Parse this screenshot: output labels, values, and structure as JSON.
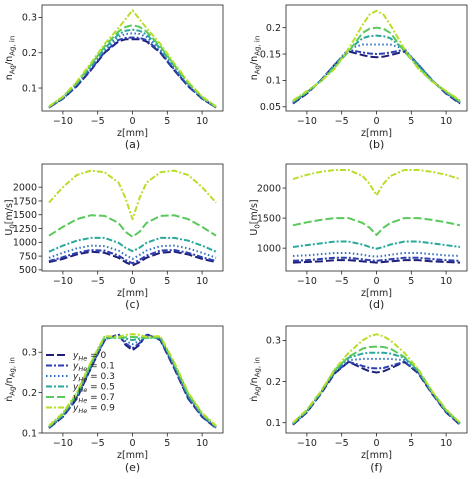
{
  "series_styles": [
    {
      "name": "y_He = 0",
      "color": "#1f1f7a",
      "dash": "8,3"
    },
    {
      "name": "y_He = 0.1",
      "color": "#2b3fb0",
      "dash": "6,2,2,2"
    },
    {
      "name": "y_He = 0.3",
      "color": "#2f6fc0",
      "dash": "1.5,2.5"
    },
    {
      "name": "y_He = 0.5",
      "color": "#2aa89a",
      "dash": "6,2,2,2"
    },
    {
      "name": "y_He = 0.7",
      "color": "#59c95b",
      "dash": "8,3"
    },
    {
      "name": "y_He = 0.9",
      "color": "#b9de2a",
      "dash": "6,2,2,2"
    }
  ],
  "legend": {
    "location": "panel (e), center-left",
    "entries": [
      {
        "sym": "y",
        "sub": "He",
        "rest": " = 0"
      },
      {
        "sym": "y",
        "sub": "He",
        "rest": " = 0.1"
      },
      {
        "sym": "y",
        "sub": "He",
        "rest": " = 0.3"
      },
      {
        "sym": "y",
        "sub": "He",
        "rest": " = 0.5"
      },
      {
        "sym": "y",
        "sub": "He",
        "rest": " = 0.7"
      },
      {
        "sym": "y",
        "sub": "He",
        "rest": " = 0.9"
      }
    ]
  },
  "chart_data": [
    {
      "panel": "(a)",
      "type": "line",
      "xlabel": "z[mm]",
      "ylabel": {
        "main": "n",
        "sub": "Ag",
        "mid": "/n",
        "sub2": "Ag, in"
      },
      "xlim": [
        -13,
        13
      ],
      "ylim": [
        0.035,
        0.335
      ],
      "xticks": [
        -10,
        -5,
        0,
        5,
        10
      ],
      "yticks": [
        0.1,
        0.2,
        0.3
      ],
      "x": [
        -12,
        -10,
        -8,
        -6,
        -4,
        -2,
        -1,
        0,
        1,
        2,
        4,
        6,
        8,
        10,
        12
      ],
      "series": [
        {
          "values": [
            0.045,
            0.07,
            0.105,
            0.15,
            0.2,
            0.232,
            0.238,
            0.238,
            0.238,
            0.232,
            0.2,
            0.15,
            0.105,
            0.07,
            0.045
          ]
        },
        {
          "values": [
            0.045,
            0.07,
            0.106,
            0.152,
            0.202,
            0.236,
            0.242,
            0.243,
            0.242,
            0.236,
            0.202,
            0.152,
            0.106,
            0.07,
            0.045
          ]
        },
        {
          "values": [
            0.046,
            0.072,
            0.11,
            0.158,
            0.208,
            0.245,
            0.253,
            0.255,
            0.253,
            0.245,
            0.208,
            0.158,
            0.11,
            0.072,
            0.046
          ]
        },
        {
          "values": [
            0.046,
            0.073,
            0.112,
            0.162,
            0.212,
            0.252,
            0.262,
            0.265,
            0.262,
            0.252,
            0.212,
            0.162,
            0.112,
            0.073,
            0.046
          ]
        },
        {
          "values": [
            0.047,
            0.074,
            0.115,
            0.165,
            0.218,
            0.26,
            0.273,
            0.278,
            0.273,
            0.26,
            0.218,
            0.165,
            0.115,
            0.074,
            0.047
          ]
        },
        {
          "values": [
            0.048,
            0.076,
            0.118,
            0.17,
            0.225,
            0.27,
            0.295,
            0.32,
            0.295,
            0.27,
            0.225,
            0.17,
            0.118,
            0.076,
            0.048
          ]
        }
      ]
    },
    {
      "panel": "(b)",
      "type": "line",
      "xlabel": "z[mm]",
      "ylabel": {
        "main": "n",
        "sub": "Ag",
        "mid": "/n",
        "sub2": "Ag, in"
      },
      "xlim": [
        -13,
        13
      ],
      "ylim": [
        0.042,
        0.243
      ],
      "xticks": [
        -10,
        -5,
        0,
        5,
        10
      ],
      "yticks": [
        0.05,
        0.1,
        0.15,
        0.2
      ],
      "x": [
        -12,
        -10,
        -8,
        -6,
        -4,
        -2,
        -1,
        0,
        1,
        2,
        4,
        6,
        8,
        10,
        12
      ],
      "series": [
        {
          "values": [
            0.056,
            0.075,
            0.1,
            0.13,
            0.155,
            0.148,
            0.145,
            0.144,
            0.145,
            0.148,
            0.155,
            0.13,
            0.1,
            0.075,
            0.056
          ]
        },
        {
          "values": [
            0.057,
            0.076,
            0.1,
            0.13,
            0.158,
            0.153,
            0.151,
            0.15,
            0.151,
            0.153,
            0.158,
            0.13,
            0.1,
            0.076,
            0.057
          ]
        },
        {
          "values": [
            0.058,
            0.077,
            0.1,
            0.13,
            0.16,
            0.168,
            0.168,
            0.168,
            0.168,
            0.168,
            0.16,
            0.13,
            0.1,
            0.077,
            0.058
          ]
        },
        {
          "values": [
            0.059,
            0.078,
            0.099,
            0.128,
            0.158,
            0.18,
            0.184,
            0.185,
            0.184,
            0.18,
            0.158,
            0.128,
            0.099,
            0.078,
            0.059
          ]
        },
        {
          "values": [
            0.06,
            0.078,
            0.098,
            0.125,
            0.155,
            0.19,
            0.198,
            0.2,
            0.198,
            0.19,
            0.155,
            0.125,
            0.098,
            0.078,
            0.06
          ]
        },
        {
          "values": [
            0.062,
            0.08,
            0.098,
            0.122,
            0.16,
            0.205,
            0.225,
            0.232,
            0.225,
            0.205,
            0.16,
            0.122,
            0.098,
            0.08,
            0.062
          ]
        }
      ]
    },
    {
      "panel": "(c)",
      "type": "line",
      "xlabel": "z[mm]",
      "ylabel": {
        "main": "U",
        "sub": "0",
        "mid": "[m/s]",
        "sub2": ""
      },
      "xlim": [
        -13,
        13
      ],
      "ylim": [
        480,
        2420
      ],
      "xticks": [
        -10,
        -5,
        0,
        5,
        10
      ],
      "yticks": [
        500,
        750,
        1000,
        1250,
        1500,
        1750,
        2000
      ],
      "x": [
        -12,
        -10,
        -8,
        -6,
        -4,
        -2,
        -1,
        0,
        1,
        2,
        4,
        6,
        8,
        10,
        12
      ],
      "series": [
        {
          "values": [
            640,
            700,
            780,
            830,
            810,
            720,
            640,
            580,
            640,
            720,
            810,
            830,
            780,
            700,
            640
          ]
        },
        {
          "values": [
            660,
            730,
            810,
            860,
            850,
            760,
            680,
            620,
            680,
            760,
            850,
            860,
            810,
            730,
            660
          ]
        },
        {
          "values": [
            720,
            810,
            890,
            940,
            930,
            850,
            770,
            700,
            770,
            850,
            930,
            940,
            890,
            810,
            720
          ]
        },
        {
          "values": [
            830,
            940,
            1030,
            1080,
            1080,
            990,
            900,
            840,
            900,
            990,
            1080,
            1080,
            1030,
            940,
            830
          ]
        },
        {
          "values": [
            1120,
            1280,
            1420,
            1490,
            1480,
            1350,
            1190,
            1100,
            1190,
            1350,
            1480,
            1490,
            1420,
            1280,
            1120
          ]
        },
        {
          "values": [
            1720,
            2000,
            2220,
            2300,
            2270,
            2080,
            1800,
            1420,
            1800,
            2080,
            2270,
            2300,
            2220,
            2000,
            1720
          ]
        }
      ]
    },
    {
      "panel": "(d)",
      "type": "line",
      "xlabel": "z[mm]",
      "ylabel": {
        "main": "U",
        "sub": "0",
        "mid": "[m/s]",
        "sub2": ""
      },
      "xlim": [
        -13,
        13
      ],
      "ylim": [
        620,
        2400
      ],
      "xticks": [
        -10,
        -5,
        0,
        5,
        10
      ],
      "yticks": [
        1000,
        1500,
        2000
      ],
      "x": [
        -12,
        -10,
        -8,
        -6,
        -4,
        -2,
        -1,
        0,
        1,
        2,
        4,
        6,
        8,
        10,
        12
      ],
      "series": [
        {
          "values": [
            760,
            770,
            780,
            800,
            800,
            780,
            770,
            760,
            770,
            780,
            800,
            800,
            780,
            770,
            760
          ]
        },
        {
          "values": [
            790,
            800,
            820,
            840,
            840,
            815,
            800,
            790,
            800,
            815,
            840,
            840,
            820,
            800,
            790
          ]
        },
        {
          "values": [
            870,
            880,
            900,
            920,
            920,
            890,
            870,
            860,
            870,
            890,
            920,
            920,
            900,
            880,
            870
          ]
        },
        {
          "values": [
            1020,
            1050,
            1080,
            1110,
            1110,
            1060,
            1020,
            990,
            1020,
            1060,
            1110,
            1110,
            1080,
            1050,
            1020
          ]
        },
        {
          "values": [
            1380,
            1430,
            1470,
            1500,
            1500,
            1420,
            1340,
            1220,
            1340,
            1420,
            1500,
            1500,
            1470,
            1430,
            1380
          ]
        },
        {
          "values": [
            2150,
            2220,
            2270,
            2300,
            2300,
            2200,
            2070,
            1880,
            2070,
            2200,
            2300,
            2300,
            2270,
            2220,
            2150
          ]
        }
      ]
    },
    {
      "panel": "(e)",
      "type": "line",
      "xlabel": "z[mm]",
      "ylabel": {
        "main": "n",
        "sub": "Ag",
        "mid": "/n",
        "sub2": "Ag, in",
        "dot": true
      },
      "xlim": [
        -13,
        13
      ],
      "ylim": [
        0.1,
        0.365
      ],
      "xticks": [
        -10,
        -5,
        0,
        5,
        10
      ],
      "yticks": [
        0.1,
        0.2,
        0.3
      ],
      "x": [
        -12,
        -10,
        -8,
        -6,
        -4,
        -2,
        -1,
        0,
        1,
        2,
        4,
        6,
        8,
        10,
        12
      ],
      "series": [
        {
          "values": [
            0.112,
            0.14,
            0.185,
            0.26,
            0.33,
            0.345,
            0.318,
            0.305,
            0.318,
            0.345,
            0.33,
            0.26,
            0.185,
            0.14,
            0.112
          ]
        },
        {
          "values": [
            0.113,
            0.141,
            0.187,
            0.262,
            0.332,
            0.343,
            0.322,
            0.31,
            0.322,
            0.343,
            0.332,
            0.262,
            0.187,
            0.141,
            0.113
          ]
        },
        {
          "values": [
            0.114,
            0.143,
            0.19,
            0.265,
            0.334,
            0.34,
            0.328,
            0.32,
            0.328,
            0.34,
            0.334,
            0.265,
            0.19,
            0.143,
            0.114
          ]
        },
        {
          "values": [
            0.115,
            0.145,
            0.193,
            0.268,
            0.336,
            0.336,
            0.334,
            0.33,
            0.334,
            0.336,
            0.336,
            0.268,
            0.193,
            0.145,
            0.115
          ]
        },
        {
          "values": [
            0.116,
            0.147,
            0.197,
            0.272,
            0.338,
            0.335,
            0.337,
            0.338,
            0.337,
            0.335,
            0.338,
            0.272,
            0.197,
            0.147,
            0.116
          ]
        },
        {
          "values": [
            0.118,
            0.15,
            0.2,
            0.275,
            0.34,
            0.338,
            0.343,
            0.345,
            0.343,
            0.338,
            0.34,
            0.275,
            0.2,
            0.15,
            0.118
          ]
        }
      ]
    },
    {
      "panel": "(f)",
      "type": "line",
      "xlabel": "z[mm]",
      "ylabel": {
        "main": "n",
        "sub": "Ag",
        "mid": "/n",
        "sub2": "Ag, in",
        "dot": true
      },
      "xlim": [
        -13,
        13
      ],
      "ylim": [
        0.075,
        0.335
      ],
      "xticks": [
        -10,
        -5,
        0,
        5,
        10
      ],
      "yticks": [
        0.1,
        0.2,
        0.3
      ],
      "x": [
        -12,
        -10,
        -8,
        -6,
        -4,
        -2,
        -1,
        0,
        1,
        2,
        4,
        6,
        8,
        10,
        12
      ],
      "series": [
        {
          "values": [
            0.095,
            0.125,
            0.17,
            0.22,
            0.248,
            0.232,
            0.225,
            0.222,
            0.225,
            0.232,
            0.248,
            0.22,
            0.17,
            0.125,
            0.095
          ]
        },
        {
          "values": [
            0.096,
            0.126,
            0.172,
            0.222,
            0.248,
            0.238,
            0.233,
            0.232,
            0.233,
            0.238,
            0.248,
            0.222,
            0.172,
            0.126,
            0.096
          ]
        },
        {
          "values": [
            0.097,
            0.127,
            0.173,
            0.224,
            0.252,
            0.255,
            0.255,
            0.255,
            0.255,
            0.255,
            0.252,
            0.224,
            0.173,
            0.127,
            0.097
          ]
        },
        {
          "values": [
            0.098,
            0.128,
            0.173,
            0.225,
            0.258,
            0.268,
            0.27,
            0.27,
            0.27,
            0.268,
            0.258,
            0.225,
            0.173,
            0.128,
            0.098
          ]
        },
        {
          "values": [
            0.099,
            0.13,
            0.175,
            0.228,
            0.26,
            0.28,
            0.284,
            0.285,
            0.284,
            0.28,
            0.26,
            0.228,
            0.175,
            0.13,
            0.099
          ]
        },
        {
          "values": [
            0.1,
            0.132,
            0.176,
            0.23,
            0.27,
            0.3,
            0.31,
            0.315,
            0.31,
            0.3,
            0.27,
            0.23,
            0.176,
            0.132,
            0.1
          ]
        }
      ]
    }
  ]
}
